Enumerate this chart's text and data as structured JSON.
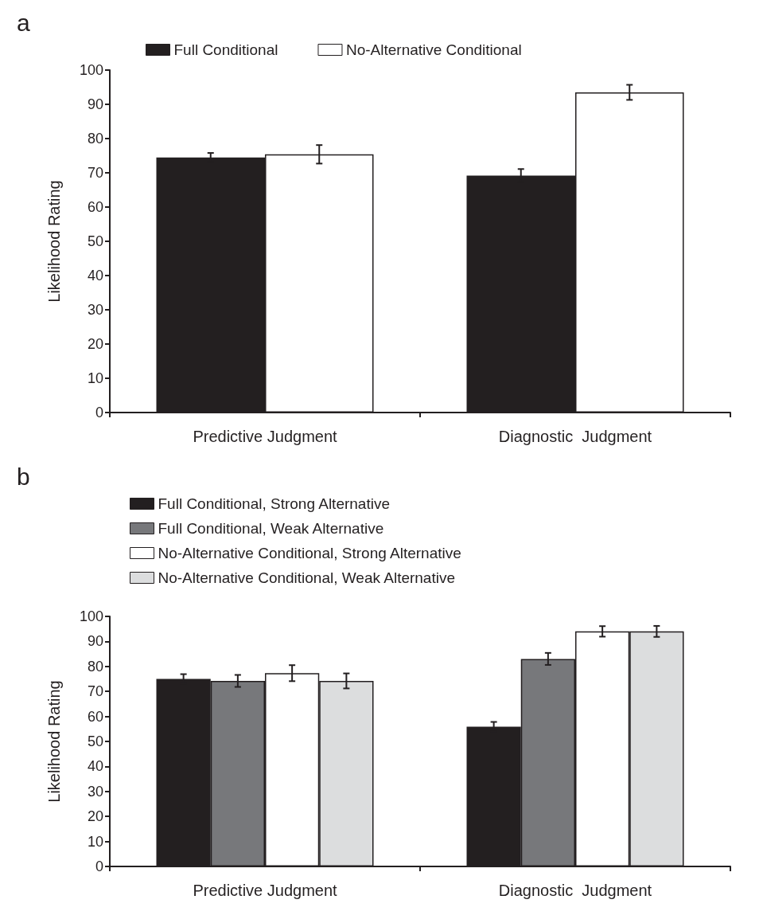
{
  "chart_data": [
    {
      "type": "bar",
      "title": "a",
      "ylabel": "Likelihood Rating",
      "categories": [
        "Predictive Judgment",
        "Diagnostic  Judgment"
      ],
      "series": [
        {
          "name": "Full Conditional",
          "color": "#231f20",
          "values": [
            74.5,
            69.2
          ],
          "errors": [
            1.3,
            1.9
          ]
        },
        {
          "name": "No-Alternative Conditional",
          "color": "#ffffff",
          "values": [
            75.4,
            93.5
          ],
          "errors": [
            2.7,
            2.2
          ]
        }
      ],
      "ylim": [
        0,
        100
      ],
      "yticks": [
        0,
        10,
        20,
        30,
        40,
        50,
        60,
        70,
        80,
        90,
        100
      ],
      "grid": false,
      "legend": "top"
    },
    {
      "type": "bar",
      "title": "b",
      "ylabel": "Likelihood Rating",
      "categories": [
        "Predictive Judgment",
        "Diagnostic  Judgment"
      ],
      "series": [
        {
          "name": "Full Conditional, Strong Alternative",
          "color": "#231f20",
          "values": [
            75.0,
            55.9
          ],
          "errors": [
            1.9,
            1.9
          ]
        },
        {
          "name": "Full Conditional, Weak Alternative",
          "color": "#77787b",
          "values": [
            74.2,
            83.0
          ],
          "errors": [
            2.4,
            2.4
          ]
        },
        {
          "name": "No-Alternative Conditional, Strong Alternative",
          "color": "#ffffff",
          "values": [
            77.3,
            94.0
          ],
          "errors": [
            3.2,
            2.1
          ]
        },
        {
          "name": "No-Alternative Conditional, Weak Alternative",
          "color": "#dcddde",
          "values": [
            74.2,
            94.0
          ],
          "errors": [
            3.0,
            2.2
          ]
        }
      ],
      "ylim": [
        0,
        100
      ],
      "yticks": [
        0,
        10,
        20,
        30,
        40,
        50,
        60,
        70,
        80,
        90,
        100
      ],
      "grid": false,
      "legend": "top left"
    }
  ]
}
